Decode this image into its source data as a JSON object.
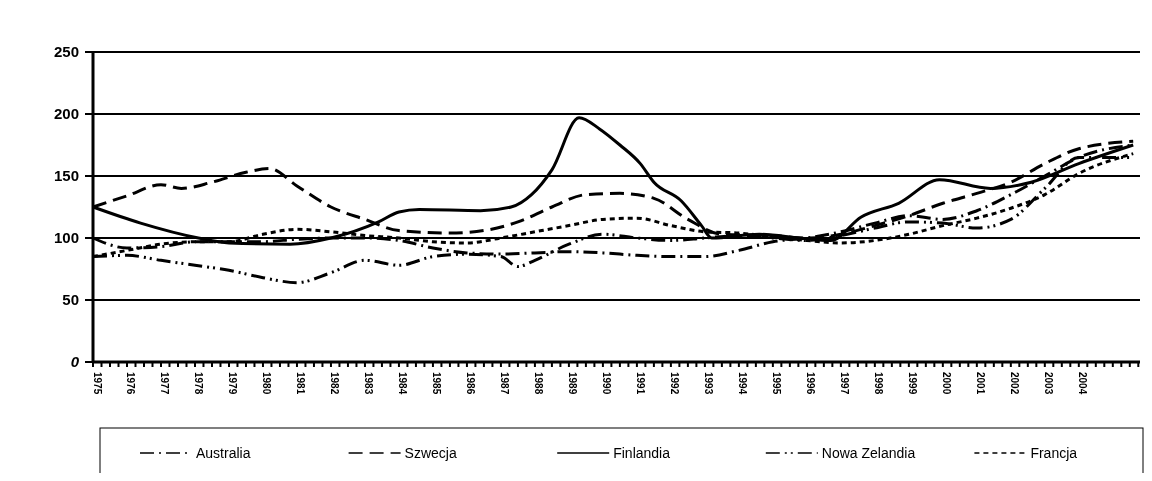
{
  "chart_data": {
    "type": "line",
    "xlim": [
      1975,
      2005.8
    ],
    "xticks": [
      1975,
      1976,
      1977,
      1978,
      1979,
      1980,
      1981,
      1982,
      1983,
      1984,
      1985,
      1986,
      1987,
      1988,
      1989,
      1990,
      1991,
      1992,
      1993,
      1994,
      1995,
      1996,
      1997,
      1998,
      1999,
      2000,
      2001,
      2002,
      2003,
      2004
    ],
    "ylim": [
      0,
      250
    ],
    "yticks": [
      0,
      50,
      100,
      150,
      200,
      250
    ],
    "grid": "y",
    "legend": "bottom",
    "series": [
      {
        "name": "Australia",
        "color": "#000000",
        "line_style": "dashdot",
        "x": [
          1975,
          1976,
          1977,
          1978,
          1979,
          1980,
          1981,
          1982,
          1983,
          1984,
          1985,
          1986,
          1987,
          1988,
          1989,
          1990,
          1991,
          1992,
          1993,
          1994,
          1995,
          1996,
          1997,
          1998,
          1999,
          2000,
          2001,
          2002,
          2003,
          2004,
          2005.6
        ],
        "values": [
          100,
          92,
          93,
          97,
          97,
          97,
          99,
          100,
          100,
          98,
          92,
          88,
          87,
          88,
          89,
          88,
          86,
          85,
          85,
          90,
          97,
          100,
          105,
          112,
          118,
          115,
          122,
          135,
          150,
          165,
          175
        ]
      },
      {
        "name": "Szwecja",
        "color": "#000000",
        "line_style": "dashed",
        "x": [
          1975,
          1976,
          1977,
          1977.6,
          1978.5,
          1979.5,
          1980.2,
          1981,
          1982,
          1983,
          1984,
          1985.5,
          1986.5,
          1987.5,
          1988.5,
          1989.5,
          1990.5,
          1991.5,
          1992.5,
          1993.5,
          1995,
          1996,
          1997,
          1998,
          1999,
          2000,
          2001,
          2002,
          2003,
          2004,
          2005.6
        ],
        "values": [
          125,
          134,
          143,
          140,
          145,
          153,
          156,
          142,
          125,
          115,
          106,
          104,
          106,
          113,
          125,
          135,
          136,
          132,
          115,
          103,
          102,
          100,
          103,
          110,
          118,
          128,
          136,
          145,
          160,
          172,
          178
        ]
      },
      {
        "name": "Finlandia",
        "color": "#000000",
        "line_style": "solid",
        "x": [
          1975,
          1976.4,
          1978.1,
          1979,
          1980.8,
          1982,
          1983.4,
          1984,
          1984.6,
          1986.4,
          1987.3,
          1987.9,
          1988.5,
          1989.3,
          1989.9,
          1990.5,
          1991.1,
          1991.5,
          1992.3,
          1992.9,
          1993.2,
          1994.6,
          1995.8,
          1996.7,
          1997.6,
          1998.7,
          1999.9,
          2001.4,
          2002.6,
          2004,
          2005.6
        ],
        "values": [
          125,
          112,
          100,
          96,
          95,
          100,
          113,
          121,
          123,
          122,
          125,
          135,
          155,
          197,
          188,
          175,
          160,
          145,
          130,
          110,
          100,
          103,
          100,
          98,
          117,
          128,
          147,
          140,
          145,
          160,
          175
        ]
      },
      {
        "name": "Nowa Zelandia",
        "color": "#000000",
        "line_style": "dashdotdot",
        "x": [
          1975,
          1976,
          1977,
          1978,
          1979,
          1980,
          1981,
          1982,
          1983,
          1984,
          1985,
          1986,
          1987,
          1987.5,
          1988,
          1989,
          1990,
          1991,
          1992,
          1993,
          1994,
          1995,
          1996,
          1997,
          1998,
          1999,
          2000,
          2001,
          2002,
          2003,
          2004,
          2005.6
        ],
        "values": [
          85,
          86,
          82,
          78,
          74,
          68,
          64,
          72,
          82,
          78,
          85,
          87,
          85,
          77,
          82,
          95,
          103,
          100,
          98,
          100,
          102,
          100,
          98,
          102,
          108,
          113,
          112,
          108,
          115,
          140,
          165,
          165
        ]
      },
      {
        "name": "Francja",
        "color": "#000000",
        "line_style": "dotted",
        "x": [
          1975,
          1976,
          1977,
          1978,
          1979,
          1980,
          1981,
          1982,
          1983,
          1984,
          1985,
          1986,
          1987,
          1988,
          1989,
          1990,
          1991,
          1992,
          1993,
          1994,
          1995,
          1996,
          1997,
          1998,
          1999,
          2000,
          2001,
          2002,
          2003,
          2004,
          2005.6
        ],
        "values": [
          85,
          90,
          95,
          97,
          97,
          103,
          107,
          105,
          102,
          100,
          97,
          96,
          100,
          105,
          110,
          115,
          116,
          110,
          105,
          104,
          101,
          98,
          96,
          98,
          103,
          110,
          116,
          124,
          135,
          152,
          168
        ]
      }
    ]
  }
}
